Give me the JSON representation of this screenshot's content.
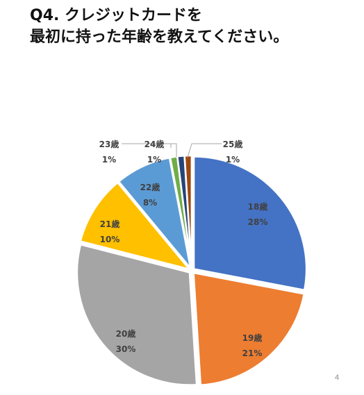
{
  "title_lines": [
    "Q4. クレジットカードを",
    "最初に持った年齢を教えてください。"
  ],
  "page_number": "4",
  "chart_data": {
    "type": "pie",
    "title": "Q4. クレジットカードを最初に持った年齢を教えてください。",
    "slices": [
      {
        "label": "18歳",
        "value": 28,
        "value_label": "28%",
        "color": "#4472C4"
      },
      {
        "label": "19歳",
        "value": 21,
        "value_label": "21%",
        "color": "#ED7D31"
      },
      {
        "label": "20歳",
        "value": 30,
        "value_label": "30%",
        "color": "#A5A5A5"
      },
      {
        "label": "21歳",
        "value": 10,
        "value_label": "10%",
        "color": "#FFC000"
      },
      {
        "label": "22歳",
        "value": 8,
        "value_label": "8%",
        "color": "#5B9BD5"
      },
      {
        "label": "23歳",
        "value": 1,
        "value_label": "1%",
        "color": "#70AD47"
      },
      {
        "label": "24歳",
        "value": 1,
        "value_label": "1%",
        "color": "#264478"
      },
      {
        "label": "25歳",
        "value": 1,
        "value_label": "1%",
        "color": "#9E480E"
      }
    ],
    "start_angle_deg": 0,
    "direction": "clockwise",
    "legend": "none"
  }
}
